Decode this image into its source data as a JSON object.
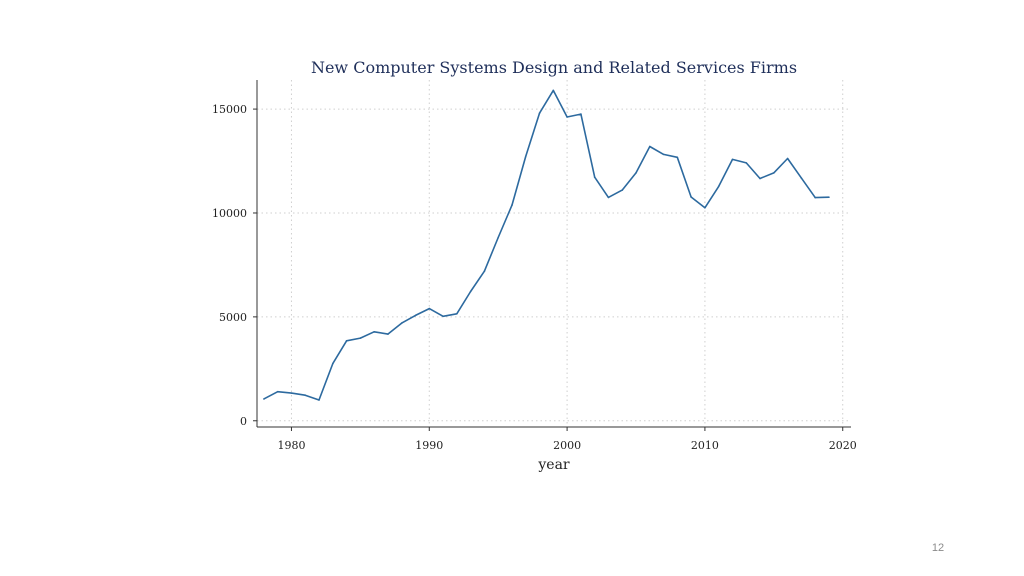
{
  "slide": {
    "page_number": "12"
  },
  "chart_data": {
    "type": "line",
    "title": "New Computer Systems Design and Related Services Firms",
    "xlabel": "year",
    "ylabel": "",
    "xlim": [
      1977.5,
      2020.6
    ],
    "ylim": [
      -300,
      16400
    ],
    "x_ticks": [
      1980,
      1990,
      2000,
      2010,
      2020
    ],
    "y_ticks": [
      0,
      5000,
      10000,
      15000
    ],
    "grid": true,
    "line_color": "#2d6a9f",
    "series": [
      {
        "x": [
          1978,
          1979,
          1980,
          1981,
          1982,
          1983,
          1984,
          1985,
          1986,
          1987,
          1988,
          1989,
          1990,
          1991,
          1992,
          1993,
          1994,
          1995,
          1996,
          1997,
          1998,
          1999,
          2000,
          2001,
          2002,
          2003,
          2004,
          2005,
          2006,
          2007,
          2008,
          2009,
          2010,
          2011,
          2012,
          2013,
          2014,
          2015,
          2016,
          2017,
          2018,
          2019
        ],
        "values": [
          1050,
          1400,
          1330,
          1230,
          1000,
          2750,
          3850,
          3980,
          4280,
          4170,
          4700,
          5070,
          5400,
          5030,
          5150,
          6220,
          7200,
          8820,
          10380,
          12720,
          14800,
          15900,
          14620,
          14760,
          11720,
          10750,
          11100,
          11930,
          13200,
          12820,
          12680,
          10770,
          10250,
          11280,
          12580,
          12410,
          11660,
          11930,
          12620,
          11680,
          10740,
          10760
        ]
      }
    ]
  }
}
